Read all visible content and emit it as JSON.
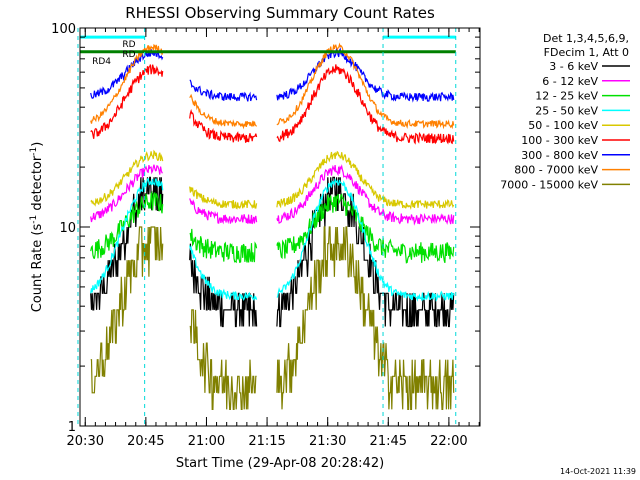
{
  "chart_data": {
    "type": "line",
    "title": "RHESSI Observing Summary Count Rates",
    "xlabel": "Start Time (29-Apr-08 20:28:42)",
    "ylabel": "Count Rate (s",
    "ylabel_sup": "-1",
    "ylabel_tail": " detector",
    "ylabel_end": ")",
    "yscale": "log",
    "ylim": [
      1,
      100
    ],
    "xlim_minutes": [
      0,
      99
    ],
    "x_ticks": [
      {
        "label": "20:30",
        "min": 1.3
      },
      {
        "label": "20:45",
        "min": 16.3
      },
      {
        "label": "21:00",
        "min": 31.3
      },
      {
        "label": "21:15",
        "min": 46.3
      },
      {
        "label": "21:30",
        "min": 61.3
      },
      {
        "label": "21:45",
        "min": 76.3
      },
      {
        "label": "22:00",
        "min": 91.3
      }
    ],
    "y_ticks": [
      {
        "label": "1",
        "value": 1
      },
      {
        "label": "10",
        "value": 10
      },
      {
        "label": "100",
        "value": 100
      }
    ],
    "legend": {
      "placement": "right",
      "header": [
        "Det 1,3,4,5,6,9,",
        "FDecim 1, Att 0"
      ],
      "entries": [
        {
          "label": "3 - 6 keV",
          "color": "#000000"
        },
        {
          "label": "6 - 12 keV",
          "color": "#ff00ff"
        },
        {
          "label": "12 - 25 keV",
          "color": "#00e000"
        },
        {
          "label": "25 - 50 keV",
          "color": "#00ffff"
        },
        {
          "label": "50 - 100 keV",
          "color": "#d8c800"
        },
        {
          "label": "100 - 300 keV",
          "color": "#ff0000"
        },
        {
          "label": "300 - 800 keV",
          "color": "#0000ff"
        },
        {
          "label": "800 - 7000 keV",
          "color": "#ff8000"
        },
        {
          "label": "7000 - 15000 keV",
          "color": "#808000"
        }
      ]
    },
    "flag_labels": [
      {
        "label": "RD",
        "min": 10.5,
        "value": 84
      },
      {
        "label": "RD",
        "min": 10.5,
        "value": 75
      },
      {
        "label": "RD4",
        "min": 3.0,
        "value": 69
      }
    ],
    "night_markers_min": [
      -0.5,
      16.0,
      75.0,
      93.0
    ],
    "series_profiles": [
      {
        "color": "#000000",
        "base": 3.8,
        "peak": 15.0,
        "noise": 0.22,
        "step": true
      },
      {
        "color": "#ff00ff",
        "base": 11.0,
        "peak": 19.5,
        "noise": 0.06
      },
      {
        "color": "#00e000",
        "base": 7.5,
        "peak": 13.5,
        "noise": 0.12
      },
      {
        "color": "#00ffff",
        "base": 4.5,
        "peak": 17.0,
        "noise": 0.05
      },
      {
        "color": "#d8c800",
        "base": 13.0,
        "peak": 23.0,
        "noise": 0.05
      },
      {
        "color": "#ff0000",
        "base": 28.0,
        "peak": 62.0,
        "noise": 0.06
      },
      {
        "color": "#0000ff",
        "base": 45.0,
        "peak": 75.0,
        "noise": 0.05
      },
      {
        "color": "#ff8000",
        "base": 33.0,
        "peak": 80.0,
        "noise": 0.04
      },
      {
        "color": "#808000",
        "base": 1.6,
        "peak": 8.5,
        "noise": 0.3,
        "step": true
      }
    ],
    "flag_bars": [
      {
        "color": "#00ffff",
        "value": 90,
        "from_min": -0.5,
        "to_min": 16.0
      },
      {
        "color": "#00ffff",
        "value": 90,
        "from_min": 75.0,
        "to_min": 93.0
      },
      {
        "color": "#008000",
        "value": 76,
        "from_min": -0.5,
        "to_min": 93.0
      }
    ],
    "timestamp": "14-Oct-2021 11:39"
  }
}
